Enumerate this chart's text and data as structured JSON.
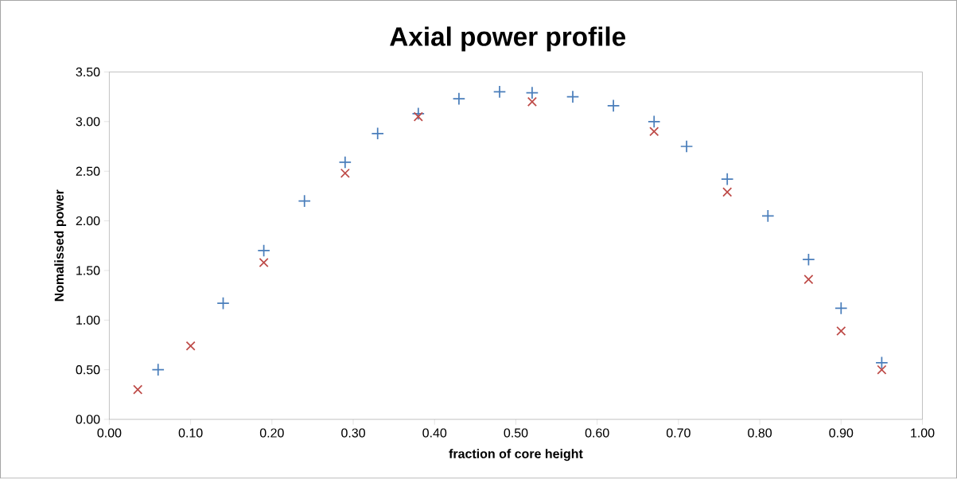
{
  "chart_data": {
    "type": "scatter",
    "title": "Axial power profile",
    "xlabel": "fraction of core height",
    "ylabel": "Nomalissed power",
    "xlim": [
      0,
      1
    ],
    "ylim": [
      0,
      3.5
    ],
    "xticks": [
      {
        "value": 0,
        "label": "0.00"
      },
      {
        "value": 0.1,
        "label": "0.10"
      },
      {
        "value": 0.2,
        "label": "0.20"
      },
      {
        "value": 0.3,
        "label": "0.30"
      },
      {
        "value": 0.4,
        "label": "0.40"
      },
      {
        "value": 0.5,
        "label": "0.50"
      },
      {
        "value": 0.6,
        "label": "0.60"
      },
      {
        "value": 0.7,
        "label": "0.70"
      },
      {
        "value": 0.8,
        "label": "0.80"
      },
      {
        "value": 0.9,
        "label": "0.90"
      },
      {
        "value": 1,
        "label": "1.00"
      }
    ],
    "yticks": [
      {
        "value": 0,
        "label": "0.00"
      },
      {
        "value": 0.5,
        "label": "0.50"
      },
      {
        "value": 1,
        "label": "1.00"
      },
      {
        "value": 1.5,
        "label": "1.50"
      },
      {
        "value": 2,
        "label": "2.00"
      },
      {
        "value": 2.5,
        "label": "2.50"
      },
      {
        "value": 3,
        "label": "3.00"
      },
      {
        "value": 3.5,
        "label": "3.50"
      }
    ],
    "grid": false,
    "series": [
      {
        "color": "#4a7ebb",
        "marker": "plus",
        "x": [
          0.06,
          0.14,
          0.19,
          0.24,
          0.29,
          0.33,
          0.38,
          0.43,
          0.48,
          0.52,
          0.57,
          0.62,
          0.67,
          0.71,
          0.76,
          0.81,
          0.86,
          0.9,
          0.95
        ],
        "values": [
          0.5,
          1.17,
          1.7,
          2.2,
          2.59,
          2.88,
          3.08,
          3.23,
          3.3,
          3.29,
          3.25,
          3.16,
          3.0,
          2.75,
          2.42,
          2.05,
          1.61,
          1.12,
          0.57
        ]
      },
      {
        "color": "#be4b48",
        "marker": "cross",
        "x": [
          0.035,
          0.1,
          0.19,
          0.29,
          0.38,
          0.52,
          0.67,
          0.76,
          0.86,
          0.9,
          0.95
        ],
        "values": [
          0.3,
          0.74,
          1.58,
          2.48,
          3.05,
          3.2,
          2.9,
          2.29,
          1.41,
          0.89,
          0.5
        ]
      }
    ]
  }
}
